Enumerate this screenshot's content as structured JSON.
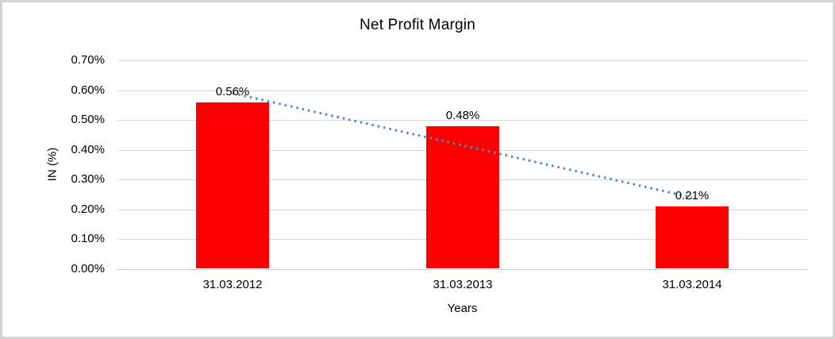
{
  "window": {
    "background": "#FFFFFF",
    "border_color": "#D4D4D4"
  },
  "chart_data": {
    "type": "bar",
    "title": "Net Profit Margin",
    "xlabel": "Years",
    "ylabel": "IN (%)",
    "categories": [
      "31.03.2012",
      "31.03.2013",
      "31.03.2014"
    ],
    "values": [
      0.56,
      0.48,
      0.21
    ],
    "data_labels": [
      "0.56%",
      "0.48%",
      "0.21%"
    ],
    "ylim": [
      0,
      0.7
    ],
    "ytick_step": 0.1,
    "ytick_labels": [
      "0.00%",
      "0.10%",
      "0.20%",
      "0.30%",
      "0.40%",
      "0.50%",
      "0.60%",
      "0.70%"
    ],
    "grid": true,
    "legend": "none",
    "bar_color": "#FF0000",
    "gridline_color": "#D9D9D9",
    "axisline_color": "#C9C9C9",
    "trendline": {
      "type": "linear",
      "style": "dotted",
      "color": "#4E88CC",
      "start_value": 0.59,
      "end_value": 0.24
    }
  }
}
